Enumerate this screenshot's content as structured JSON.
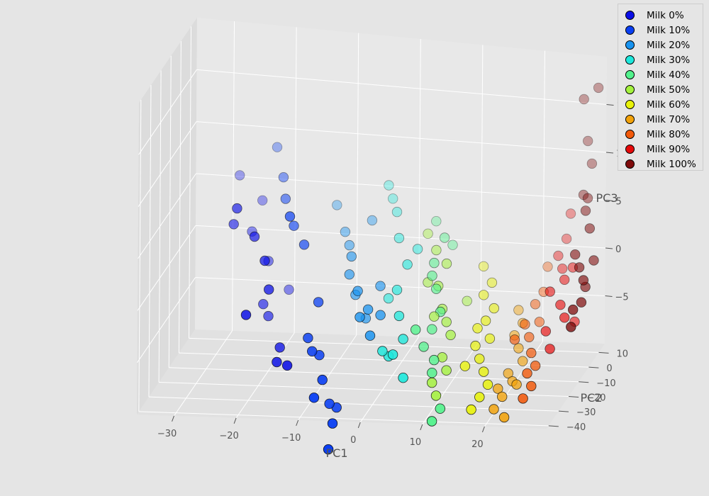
{
  "chart_data": {
    "type": "scatter",
    "dimensions": 3,
    "xlabel": "PC1",
    "ylabel": "PC2",
    "zlabel": "PC3",
    "xlim": [
      -36,
      30
    ],
    "ylim": [
      -42,
      16
    ],
    "zlim": [
      -10,
      20
    ],
    "x_ticks": [
      "−30",
      "−20",
      "−10",
      "0",
      "10",
      "20"
    ],
    "y_ticks": [
      "10",
      "0",
      "−10",
      "−20",
      "−30",
      "−40"
    ],
    "z_ticks": [
      "15",
      "10",
      "5",
      "0",
      "−5"
    ],
    "legend_position": "top-right",
    "grid": true,
    "series": [
      {
        "name": "Milk 0%",
        "color": "#0a0ee6",
        "points": [
          [
            -28,
            10,
            6
          ],
          [
            -26,
            -5,
            5
          ],
          [
            -24,
            8,
            4
          ],
          [
            -27,
            -2,
            3
          ],
          [
            -23,
            -6,
            2.5
          ],
          [
            -25,
            4,
            1.5
          ],
          [
            -21,
            -8,
            0.5
          ],
          [
            -22,
            2,
            -1
          ],
          [
            -20,
            -10,
            -2
          ],
          [
            -19,
            4,
            -4
          ],
          [
            -22,
            -3,
            -4.5
          ],
          [
            -23,
            -14,
            -4
          ],
          [
            -21,
            -4,
            -5.5
          ],
          [
            -18,
            -11,
            -7.5
          ],
          [
            -18,
            -14,
            -8.5
          ],
          [
            -16,
            -16,
            -8.5
          ]
        ]
      },
      {
        "name": "Milk 10%",
        "color": "#0a3ff2",
        "points": [
          [
            -22,
            10,
            9
          ],
          [
            -20,
            4,
            7
          ],
          [
            -19,
            0,
            5.5
          ],
          [
            -17,
            -8,
            5
          ],
          [
            -17,
            -4,
            3.5
          ],
          [
            -15,
            -6,
            2
          ],
          [
            -12,
            -10,
            -3
          ],
          [
            -13,
            -14,
            -6
          ],
          [
            -12,
            -16,
            -7
          ],
          [
            -10,
            -18,
            -9.5
          ],
          [
            -11,
            -20,
            -11
          ],
          [
            -9,
            -17,
            -12
          ],
          [
            -8,
            -16,
            -12.5
          ],
          [
            -8,
            -20,
            -13.5
          ],
          [
            -8,
            -24,
            -15.5
          ],
          [
            -11,
            -15,
            -7.5
          ]
        ]
      },
      {
        "name": "Milk 20%",
        "color": "#1893f0",
        "points": [
          [
            -12,
            8,
            4
          ],
          [
            -10,
            4,
            2
          ],
          [
            -9,
            2,
            1
          ],
          [
            -8,
            -2,
            0.5
          ],
          [
            -6,
            6,
            3
          ],
          [
            -8,
            -4,
            -1
          ],
          [
            -6,
            -8,
            -2
          ],
          [
            -5,
            -12,
            -4
          ],
          [
            -3,
            -14,
            -5.5
          ],
          [
            -2,
            -10,
            -4
          ],
          [
            -4,
            -10,
            -3.5
          ],
          [
            -3,
            -4,
            -2
          ],
          [
            -5,
            -6,
            -5
          ],
          [
            -7,
            -4,
            -3
          ]
        ]
      },
      {
        "name": "Milk 30%",
        "color": "#1ee8dc",
        "points": [
          [
            -4,
            10,
            6
          ],
          [
            -2,
            6,
            4
          ],
          [
            -1,
            2,
            2
          ],
          [
            1,
            -2,
            0
          ],
          [
            0,
            -6,
            -2
          ],
          [
            1,
            -10,
            -4
          ],
          [
            2,
            -12,
            -6
          ],
          [
            1,
            -16,
            -7
          ],
          [
            0,
            -14,
            -7.5
          ],
          [
            -1,
            -14,
            -7
          ],
          [
            3,
            -18,
            -9
          ],
          [
            -3,
            8,
            5
          ],
          [
            -2,
            -2,
            -3.5
          ],
          [
            2,
            2,
            1
          ]
        ]
      },
      {
        "name": "Milk 40%",
        "color": "#52f28c",
        "points": [
          [
            4,
            8,
            3
          ],
          [
            6,
            4,
            2
          ],
          [
            5,
            0,
            0
          ],
          [
            5,
            -2,
            -1
          ],
          [
            6,
            -4,
            -2
          ],
          [
            7,
            -6,
            -4
          ],
          [
            6,
            -8,
            -5.5
          ],
          [
            5,
            -10,
            -7
          ],
          [
            7,
            -12,
            -8
          ],
          [
            7,
            -14,
            -9
          ],
          [
            8,
            -20,
            -13
          ],
          [
            9,
            -18,
            -12
          ],
          [
            4,
            -12,
            -5
          ],
          [
            7,
            6,
            1
          ]
        ]
      },
      {
        "name": "Milk 50%",
        "color": "#a4f23d",
        "points": [
          [
            3,
            6,
            2
          ],
          [
            5,
            2,
            1
          ],
          [
            7,
            0,
            0
          ],
          [
            6,
            -2,
            -2
          ],
          [
            7,
            -4,
            -4
          ],
          [
            8,
            -6,
            -5
          ],
          [
            9,
            -8,
            -6
          ],
          [
            8,
            -10,
            -8
          ],
          [
            9,
            -12,
            -9
          ],
          [
            7,
            -14,
            -10
          ],
          [
            8,
            -16,
            -11
          ],
          [
            4,
            0,
            -2
          ],
          [
            6,
            -6,
            -4.5
          ],
          [
            10,
            2,
            -4
          ]
        ]
      },
      {
        "name": "Milk 60%",
        "color": "#e8f20a",
        "points": [
          [
            12,
            6,
            -1
          ],
          [
            14,
            2,
            -2
          ],
          [
            13,
            0,
            -3
          ],
          [
            15,
            -2,
            -4
          ],
          [
            14,
            -4,
            -5
          ],
          [
            15,
            -6,
            -6.5
          ],
          [
            13,
            -8,
            -7
          ],
          [
            14,
            -10,
            -8
          ],
          [
            15,
            -12,
            -9
          ],
          [
            16,
            -14,
            -10
          ],
          [
            15,
            -16,
            -11
          ],
          [
            14,
            -18,
            -12
          ],
          [
            13,
            -6,
            -5.5
          ],
          [
            12,
            -12,
            -8.5
          ]
        ]
      },
      {
        "name": "Milk 70%",
        "color": "#f2a20a",
        "points": [
          [
            18,
            4,
            -5
          ],
          [
            19,
            2,
            -6
          ],
          [
            18,
            0,
            -7
          ],
          [
            19,
            -2,
            -8
          ],
          [
            20,
            -4,
            -9
          ],
          [
            18,
            -6,
            -10
          ],
          [
            19,
            -8,
            -10.5
          ],
          [
            17,
            -10,
            -11
          ],
          [
            18,
            -12,
            -11.5
          ],
          [
            20,
            -10,
            -10.5
          ],
          [
            17,
            -14,
            -12.5
          ],
          [
            19,
            -16,
            -13
          ]
        ]
      },
      {
        "name": "Milk 80%",
        "color": "#f2590a",
        "points": [
          [
            22,
            8,
            -1
          ],
          [
            22,
            4,
            -3
          ],
          [
            21,
            2,
            -4
          ],
          [
            22,
            0,
            -5.5
          ],
          [
            20,
            -2,
            -5.5
          ],
          [
            21,
            -4,
            -6.5
          ],
          [
            19,
            -6,
            -6.5
          ],
          [
            22,
            -8,
            -7.5
          ],
          [
            23,
            -10,
            -8.5
          ],
          [
            22,
            -12,
            -9
          ],
          [
            22,
            -16,
            -11
          ],
          [
            23,
            -14,
            -10
          ]
        ]
      },
      {
        "name": "Milk 90%",
        "color": "#e60a0a",
        "points": [
          [
            25,
            12,
            4
          ],
          [
            25,
            8,
            2
          ],
          [
            24,
            6,
            0.5
          ],
          [
            25,
            4,
            -0.5
          ],
          [
            27,
            2,
            0
          ],
          [
            26,
            0,
            -1
          ],
          [
            24,
            -2,
            -2
          ],
          [
            26,
            -4,
            -3
          ],
          [
            27,
            -6,
            -4
          ],
          [
            28,
            -2,
            -5
          ],
          [
            24,
            -6,
            -5.5
          ],
          [
            25,
            -8,
            -7
          ]
        ]
      },
      {
        "name": "Milk 100%",
        "color": "#7f0a0a",
        "points": [
          [
            29,
            14,
            17
          ],
          [
            27,
            12,
            16
          ],
          [
            28,
            10,
            12
          ],
          [
            29,
            8,
            10
          ],
          [
            28,
            6,
            7
          ],
          [
            29,
            4,
            7
          ],
          [
            29,
            2,
            6
          ],
          [
            30,
            0,
            4.5
          ],
          [
            28,
            -2,
            2
          ],
          [
            29,
            -4,
            1
          ],
          [
            30,
            -6,
            0
          ],
          [
            30,
            -8,
            -2
          ],
          [
            29,
            -10,
            -2.5
          ],
          [
            30,
            -4,
            -1
          ],
          [
            31,
            -2,
            1.5
          ],
          [
            29,
            -12,
            -4
          ]
        ]
      }
    ]
  }
}
